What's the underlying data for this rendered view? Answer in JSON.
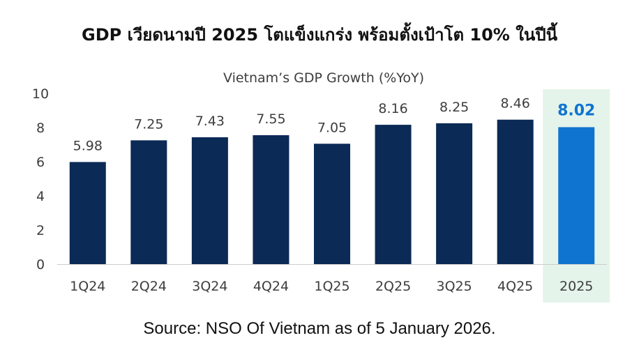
{
  "headline": "GDP เวียดนามปี 2025 โตแข็งแกร่ง พร้อมตั้งเป้าโต 10% ในปีนี้",
  "source": "Source: NSO Of Vietnam as of 5 January 2026.",
  "colors": {
    "bar": "#0b2a55",
    "highlight_bar": "#0f74d0",
    "highlight_band": "#e4f4ea",
    "highlight_label": "#0f74d0",
    "axis": "#cccccc"
  },
  "chart_data": {
    "type": "bar",
    "title": "Vietnam’s GDP Growth (%YoY)",
    "xlabel": "",
    "ylabel": "",
    "ylim": [
      0,
      10
    ],
    "yticks": [
      "0",
      "2",
      "4",
      "6",
      "8",
      "10"
    ],
    "grid": false,
    "categories": [
      "1Q24",
      "2Q24",
      "3Q24",
      "4Q24",
      "1Q25",
      "2Q25",
      "3Q25",
      "4Q25",
      "2025"
    ],
    "values": [
      5.98,
      7.25,
      7.43,
      7.55,
      7.05,
      8.16,
      8.25,
      8.46,
      8.02
    ],
    "value_labels": [
      "5.98",
      "7.25",
      "7.43",
      "7.55",
      "7.05",
      "8.16",
      "8.25",
      "8.46",
      "8.02"
    ],
    "highlight_category": "2025"
  }
}
